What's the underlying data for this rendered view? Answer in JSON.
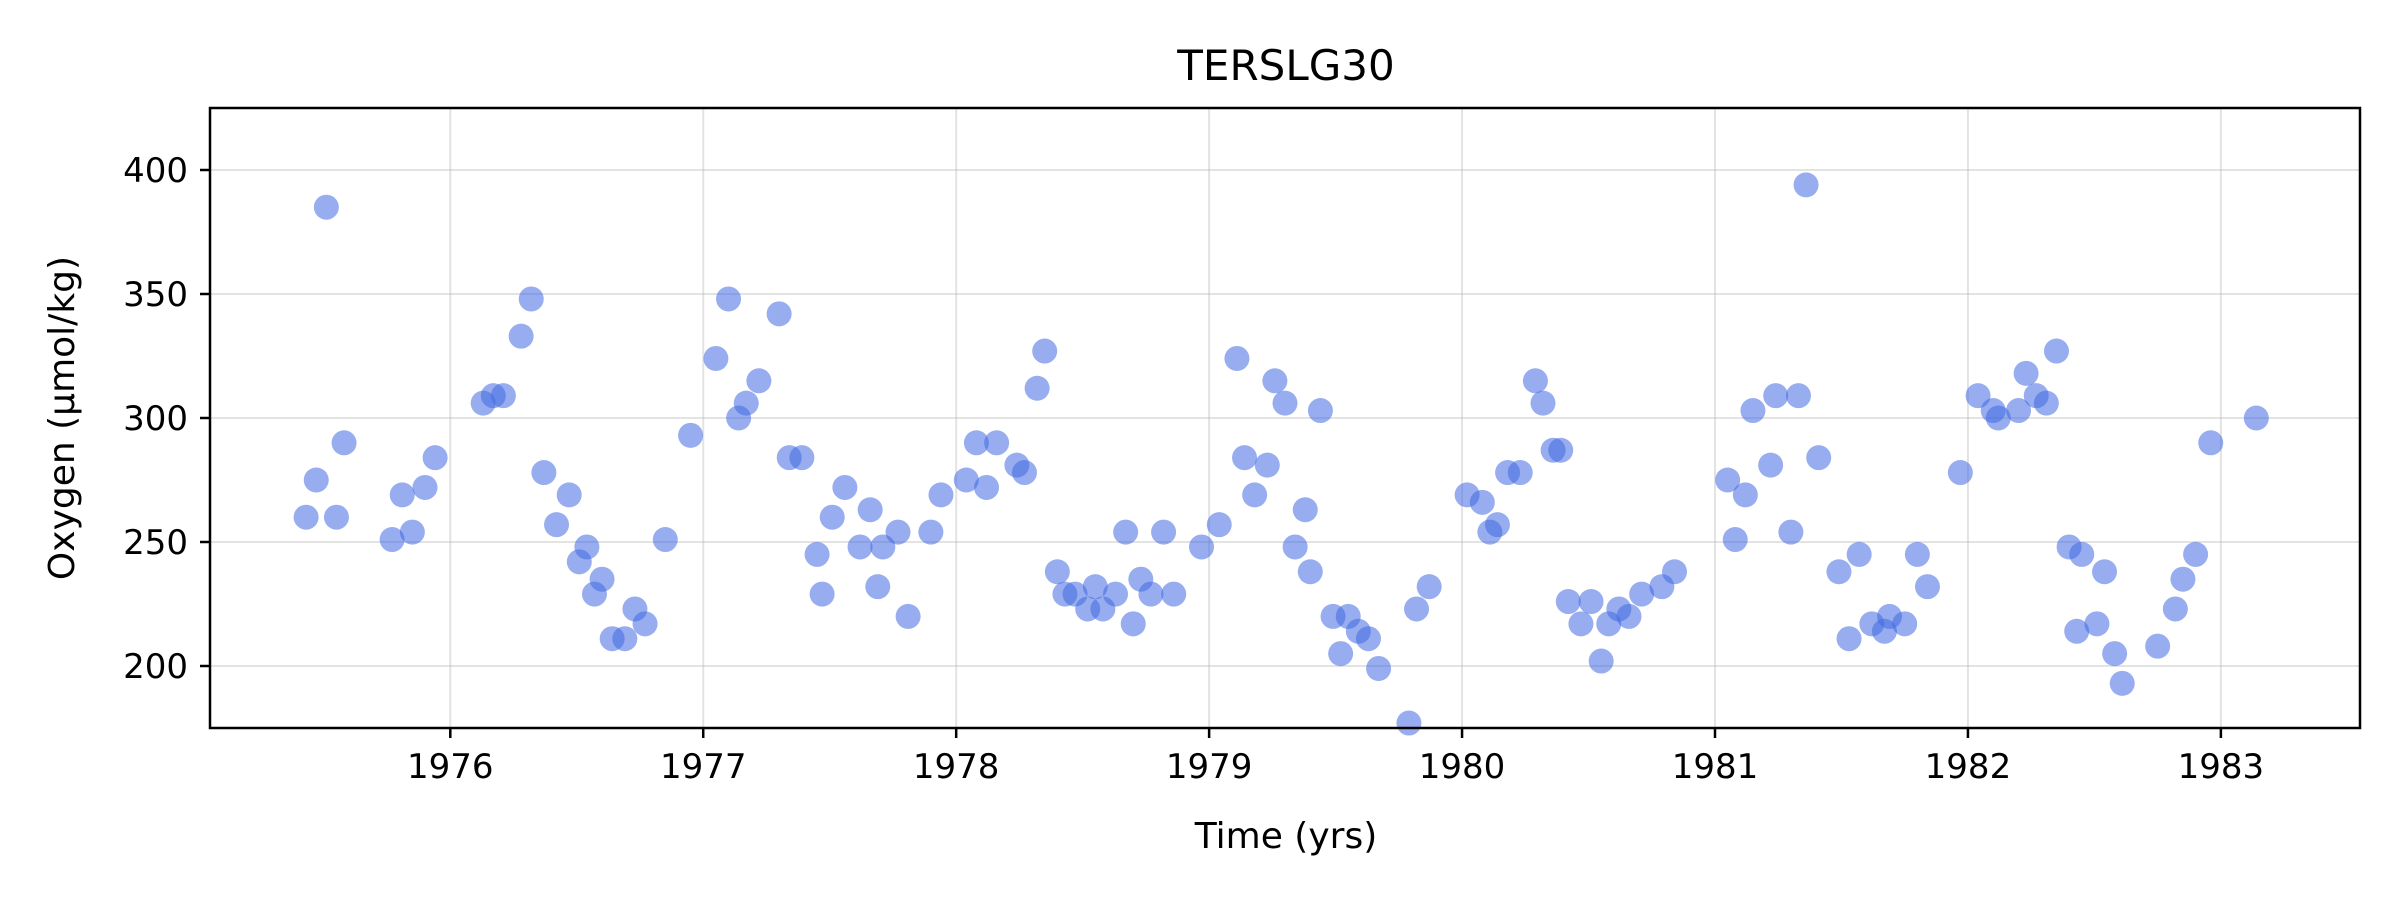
{
  "chart_data": {
    "type": "scatter",
    "title": "TERSLG30",
    "xlabel": "Time (yrs)",
    "ylabel": "Oxygen (µmol/kg)",
    "xlim": [
      1975.05,
      1983.55
    ],
    "ylim": [
      175,
      425
    ],
    "xticks": [
      1976,
      1977,
      1978,
      1979,
      1980,
      1981,
      1982,
      1983
    ],
    "yticks": [
      200,
      250,
      300,
      350,
      400
    ],
    "grid": true,
    "marker_color": "#4169e1",
    "points": [
      [
        1975.43,
        260
      ],
      [
        1975.47,
        275
      ],
      [
        1975.51,
        385
      ],
      [
        1975.55,
        260
      ],
      [
        1975.58,
        290
      ],
      [
        1975.77,
        251
      ],
      [
        1975.81,
        269
      ],
      [
        1975.85,
        254
      ],
      [
        1975.9,
        272
      ],
      [
        1975.94,
        284
      ],
      [
        1976.13,
        306
      ],
      [
        1976.17,
        309
      ],
      [
        1976.21,
        309
      ],
      [
        1976.28,
        333
      ],
      [
        1976.32,
        348
      ],
      [
        1976.37,
        278
      ],
      [
        1976.42,
        257
      ],
      [
        1976.47,
        269
      ],
      [
        1976.51,
        242
      ],
      [
        1976.54,
        248
      ],
      [
        1976.57,
        229
      ],
      [
        1976.6,
        235
      ],
      [
        1976.64,
        211
      ],
      [
        1976.69,
        211
      ],
      [
        1976.73,
        223
      ],
      [
        1976.77,
        217
      ],
      [
        1976.85,
        251
      ],
      [
        1976.95,
        293
      ],
      [
        1977.05,
        324
      ],
      [
        1977.1,
        348
      ],
      [
        1977.14,
        300
      ],
      [
        1977.17,
        306
      ],
      [
        1977.22,
        315
      ],
      [
        1977.3,
        342
      ],
      [
        1977.34,
        284
      ],
      [
        1977.39,
        284
      ],
      [
        1977.45,
        245
      ],
      [
        1977.47,
        229
      ],
      [
        1977.51,
        260
      ],
      [
        1977.56,
        272
      ],
      [
        1977.62,
        248
      ],
      [
        1977.66,
        263
      ],
      [
        1977.69,
        232
      ],
      [
        1977.71,
        248
      ],
      [
        1977.77,
        254
      ],
      [
        1977.81,
        220
      ],
      [
        1977.9,
        254
      ],
      [
        1977.94,
        269
      ],
      [
        1978.04,
        275
      ],
      [
        1978.08,
        290
      ],
      [
        1978.12,
        272
      ],
      [
        1978.16,
        290
      ],
      [
        1978.24,
        281
      ],
      [
        1978.27,
        278
      ],
      [
        1978.32,
        312
      ],
      [
        1978.35,
        327
      ],
      [
        1978.4,
        238
      ],
      [
        1978.43,
        229
      ],
      [
        1978.47,
        229
      ],
      [
        1978.52,
        223
      ],
      [
        1978.55,
        232
      ],
      [
        1978.58,
        223
      ],
      [
        1978.63,
        229
      ],
      [
        1978.67,
        254
      ],
      [
        1978.7,
        217
      ],
      [
        1978.73,
        235
      ],
      [
        1978.77,
        229
      ],
      [
        1978.82,
        254
      ],
      [
        1978.86,
        229
      ],
      [
        1978.97,
        248
      ],
      [
        1979.04,
        257
      ],
      [
        1979.11,
        324
      ],
      [
        1979.14,
        284
      ],
      [
        1979.18,
        269
      ],
      [
        1979.23,
        281
      ],
      [
        1979.26,
        315
      ],
      [
        1979.3,
        306
      ],
      [
        1979.34,
        248
      ],
      [
        1979.38,
        263
      ],
      [
        1979.4,
        238
      ],
      [
        1979.44,
        303
      ],
      [
        1979.49,
        220
      ],
      [
        1979.52,
        205
      ],
      [
        1979.55,
        220
      ],
      [
        1979.59,
        214
      ],
      [
        1979.63,
        211
      ],
      [
        1979.67,
        199
      ],
      [
        1979.79,
        177
      ],
      [
        1979.82,
        223
      ],
      [
        1979.87,
        232
      ],
      [
        1980.02,
        269
      ],
      [
        1980.08,
        266
      ],
      [
        1980.11,
        254
      ],
      [
        1980.14,
        257
      ],
      [
        1980.18,
        278
      ],
      [
        1980.23,
        278
      ],
      [
        1980.29,
        315
      ],
      [
        1980.32,
        306
      ],
      [
        1980.36,
        287
      ],
      [
        1980.39,
        287
      ],
      [
        1980.42,
        226
      ],
      [
        1980.47,
        217
      ],
      [
        1980.51,
        226
      ],
      [
        1980.55,
        202
      ],
      [
        1980.58,
        217
      ],
      [
        1980.62,
        223
      ],
      [
        1980.66,
        220
      ],
      [
        1980.71,
        229
      ],
      [
        1980.79,
        232
      ],
      [
        1980.84,
        238
      ],
      [
        1981.05,
        275
      ],
      [
        1981.08,
        251
      ],
      [
        1981.12,
        269
      ],
      [
        1981.15,
        303
      ],
      [
        1981.22,
        281
      ],
      [
        1981.24,
        309
      ],
      [
        1981.3,
        254
      ],
      [
        1981.33,
        309
      ],
      [
        1981.36,
        394
      ],
      [
        1981.41,
        284
      ],
      [
        1981.49,
        238
      ],
      [
        1981.53,
        211
      ],
      [
        1981.57,
        245
      ],
      [
        1981.62,
        217
      ],
      [
        1981.67,
        214
      ],
      [
        1981.69,
        220
      ],
      [
        1981.75,
        217
      ],
      [
        1981.8,
        245
      ],
      [
        1981.84,
        232
      ],
      [
        1981.97,
        278
      ],
      [
        1982.04,
        309
      ],
      [
        1982.1,
        303
      ],
      [
        1982.12,
        300
      ],
      [
        1982.2,
        303
      ],
      [
        1982.23,
        318
      ],
      [
        1982.27,
        309
      ],
      [
        1982.31,
        306
      ],
      [
        1982.35,
        327
      ],
      [
        1982.4,
        248
      ],
      [
        1982.43,
        214
      ],
      [
        1982.45,
        245
      ],
      [
        1982.51,
        217
      ],
      [
        1982.54,
        238
      ],
      [
        1982.58,
        205
      ],
      [
        1982.61,
        193
      ],
      [
        1982.75,
        208
      ],
      [
        1982.82,
        223
      ],
      [
        1982.85,
        235
      ],
      [
        1982.9,
        245
      ],
      [
        1982.96,
        290
      ],
      [
        1983.14,
        300
      ]
    ]
  }
}
